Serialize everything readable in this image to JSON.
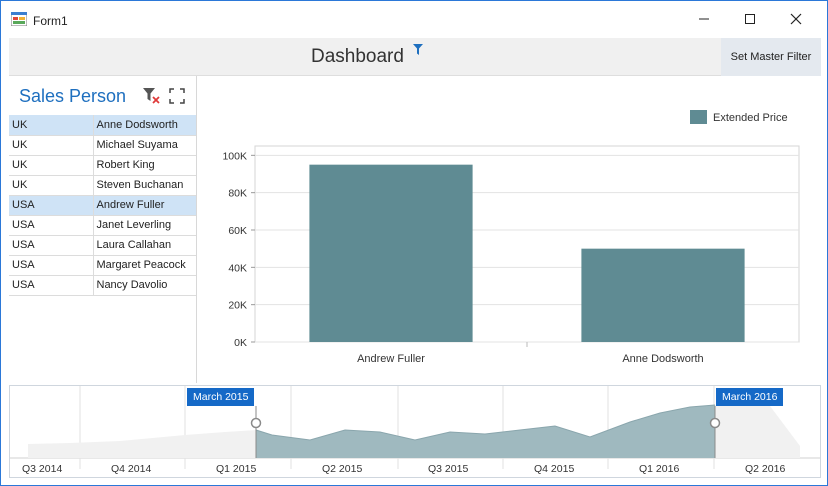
{
  "window": {
    "title": "Form1"
  },
  "dashboard": {
    "title": "Dashboard",
    "set_master_filter_label": "Set Master Filter"
  },
  "grid": {
    "caption": "Sales Person",
    "rows": [
      {
        "country": "UK",
        "name": "Anne Dodsworth",
        "selected": true
      },
      {
        "country": "UK",
        "name": "Michael Suyama",
        "selected": false
      },
      {
        "country": "UK",
        "name": "Robert King",
        "selected": false
      },
      {
        "country": "UK",
        "name": "Steven Buchanan",
        "selected": false
      },
      {
        "country": "USA",
        "name": "Andrew Fuller",
        "selected": true
      },
      {
        "country": "USA",
        "name": "Janet Leverling",
        "selected": false
      },
      {
        "country": "USA",
        "name": "Laura Callahan",
        "selected": false
      },
      {
        "country": "USA",
        "name": "Margaret Peacock",
        "selected": false
      },
      {
        "country": "USA",
        "name": "Nancy Davolio",
        "selected": false
      }
    ]
  },
  "chart_data": {
    "type": "bar",
    "categories": [
      "Andrew Fuller",
      "Anne Dodsworth"
    ],
    "series": [
      {
        "name": "Extended Price",
        "values": [
          95000,
          50000
        ],
        "color": "#5f8b93"
      }
    ],
    "ylim": [
      0,
      105000
    ],
    "yticks": [
      0,
      20000,
      40000,
      60000,
      80000,
      100000
    ],
    "ytick_labels": [
      "0K",
      "20K",
      "40K",
      "60K",
      "80K",
      "100K"
    ],
    "legend": "top-right",
    "grid": true
  },
  "range_filter": {
    "start_label": "March 2015",
    "end_label": "March 2016",
    "quarters": [
      "Q3 2014",
      "Q4 2014",
      "Q1 2015",
      "Q2 2015",
      "Q3 2015",
      "Q4 2015",
      "Q1 2016",
      "Q2 2016"
    ],
    "selected_color": "#9fb9bf"
  },
  "colors": {
    "accent": "#1e6fbf",
    "selection": "#cfe3f6",
    "bar": "#5f8b93",
    "badge": "#1569c7"
  }
}
